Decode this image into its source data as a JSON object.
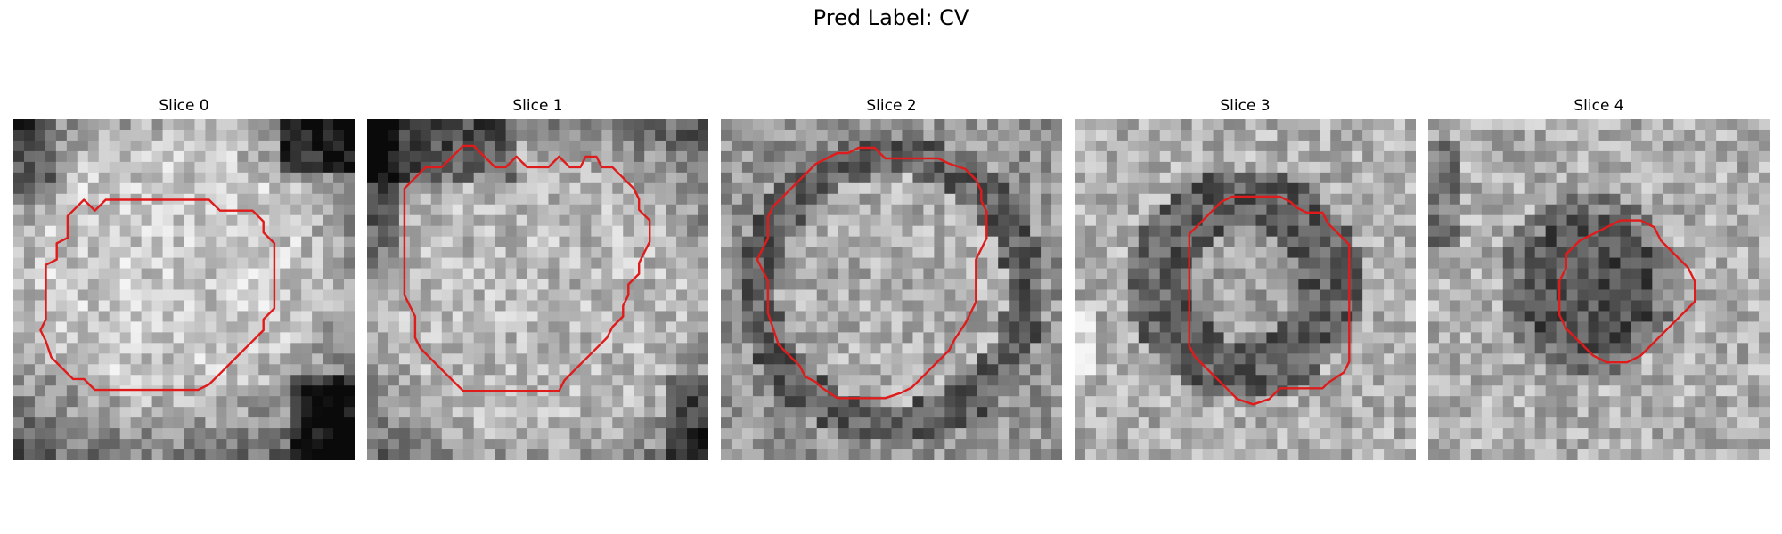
{
  "figure": {
    "title": "Pred Label: CV",
    "contour_color": "#e01b1b"
  },
  "panels": [
    {
      "title": "Slice 0",
      "center_value": "light",
      "surround": "dark corners"
    },
    {
      "title": "Slice 1",
      "center_value": "light",
      "surround": "dark top-left"
    },
    {
      "title": "Slice 2",
      "center_value": "light",
      "surround": "dark ring"
    },
    {
      "title": "Slice 3",
      "center_value": "light center",
      "surround": "dark ring"
    },
    {
      "title": "Slice 4",
      "center_value": "dark",
      "surround": "light"
    }
  ]
}
